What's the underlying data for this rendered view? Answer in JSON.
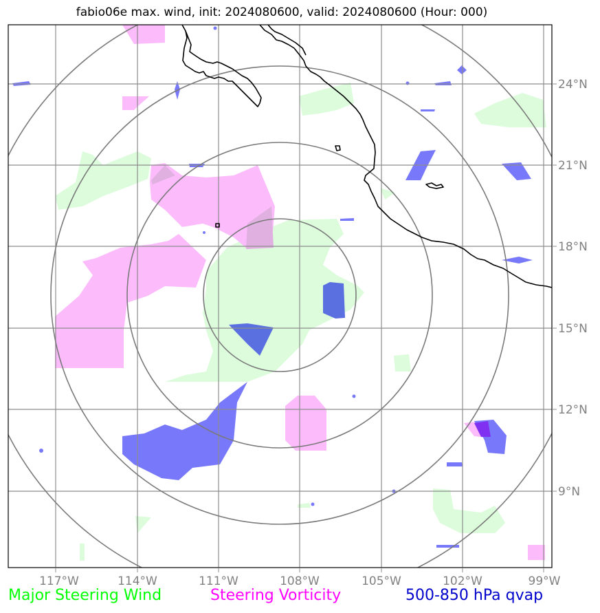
{
  "title": "fabio06e max. wind, init: 2024080600, valid: 2024080600 (Hour: 000)",
  "colors": {
    "steering_wind": "#00ff00",
    "steering_vorticity": "#ff00ff",
    "qvap": "#0000cc",
    "grid": "#808080",
    "coast": "#000000",
    "wind_fill": "#dcfcdc",
    "vort_fill": "#fcb8fc",
    "qvap_fill": "#7878fa",
    "qvap_dark_fill": "#5a70e0"
  },
  "map": {
    "lon_range": [
      -118.0,
      -98.9
    ],
    "lat_range": [
      6.3,
      26.3
    ],
    "lat_ticks": [
      {
        "value": 24,
        "label": "24°N"
      },
      {
        "value": 21,
        "label": "21°N"
      },
      {
        "value": 18,
        "label": "18°N"
      },
      {
        "value": 15,
        "label": "15°N"
      },
      {
        "value": 12,
        "label": "12°N"
      },
      {
        "value": 9,
        "label": "9°N"
      }
    ],
    "lon_ticks": [
      {
        "value": -117,
        "label": "117°W"
      },
      {
        "value": -114,
        "label": "114°W"
      },
      {
        "value": -111,
        "label": "111°W"
      },
      {
        "value": -108,
        "label": "108°W"
      },
      {
        "value": -105,
        "label": "105°W"
      },
      {
        "value": -102,
        "label": "102°W"
      },
      {
        "value": -99,
        "label": "99°W"
      }
    ],
    "storm_center": {
      "lon": -108.8,
      "lat": 16.2
    },
    "range_rings_deg": [
      2.75,
      5.5,
      8.25,
      11.0
    ]
  },
  "legend": {
    "wind": "Major Steering Wind",
    "vorticity": "Steering Vorticity",
    "qvap": "500-850 hPa qvap"
  }
}
